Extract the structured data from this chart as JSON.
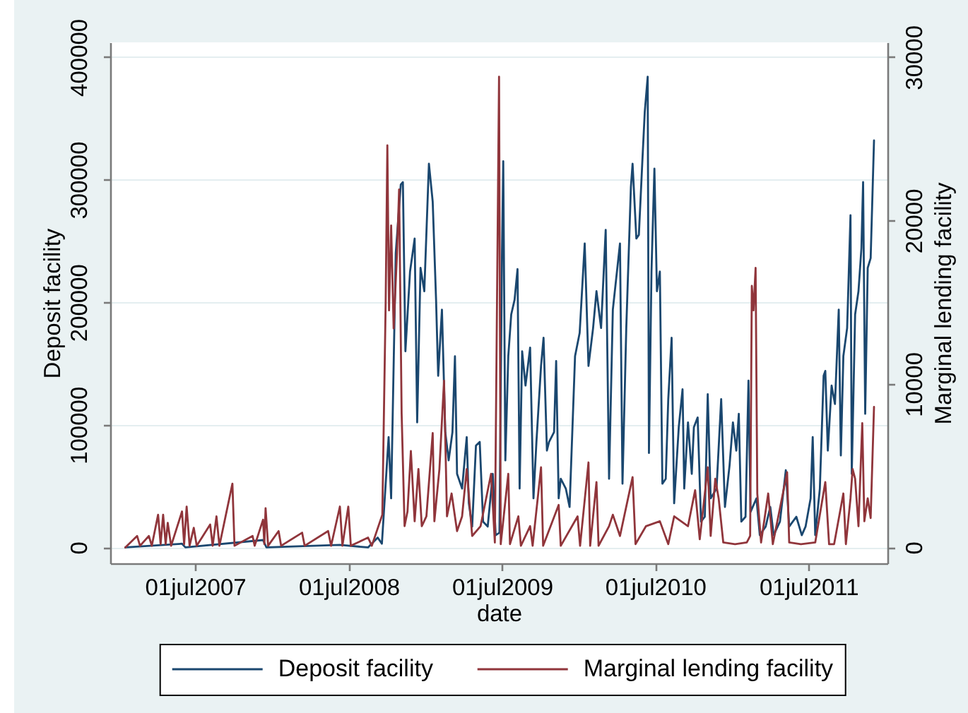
{
  "chart_data": {
    "type": "line",
    "xlabel": "date",
    "ylabel": "Deposit facility",
    "y2label": "Marginal lending facility",
    "xlim": [
      "2006-12-11",
      "2012-01-05"
    ],
    "xticks": [
      {
        "value": "2007-07-01",
        "label": "01jul2007"
      },
      {
        "value": "2008-07-01",
        "label": "01jul2008"
      },
      {
        "value": "2009-07-01",
        "label": "01jul2009"
      },
      {
        "value": "2010-07-01",
        "label": "01jul2010"
      },
      {
        "value": "2011-07-01",
        "label": "01jul2011"
      }
    ],
    "ylim": [
      -13000,
      412000
    ],
    "yticks": [
      0,
      100000,
      200000,
      300000,
      400000
    ],
    "y2lim": [
      -975,
      30900
    ],
    "y2ticks": [
      0,
      10000,
      20000,
      30000
    ],
    "grid": "y",
    "legend": "bottom",
    "series": [
      {
        "name": "Deposit facility",
        "color": "#1a476f",
        "x": [
          "2007-01-16",
          "2007-05-31",
          "2007-06-08",
          "2007-12-10",
          "2007-12-18",
          "2008-06-10",
          "2008-08-16",
          "2008-09-08",
          "2008-09-18",
          "2008-10-04",
          "2008-10-10",
          "2008-10-21",
          "2008-11-02",
          "2008-11-07",
          "2008-11-13",
          "2008-11-24",
          "2008-12-05",
          "2008-12-11",
          "2008-12-19",
          "2008-12-28",
          "2009-01-08",
          "2009-01-17",
          "2009-01-25",
          "2009-01-30",
          "2009-02-08",
          "2009-02-16",
          "2009-02-24",
          "2009-03-05",
          "2009-03-11",
          "2009-03-16",
          "2009-03-28",
          "2009-04-08",
          "2009-04-13",
          "2009-04-21",
          "2009-04-30",
          "2009-05-09",
          "2009-05-17",
          "2009-05-28",
          "2009-06-09",
          "2009-06-16",
          "2009-06-25",
          "2009-07-01",
          "2009-07-04",
          "2009-07-09",
          "2009-07-16",
          "2009-07-23",
          "2009-07-31",
          "2009-08-07",
          "2009-08-12",
          "2009-08-18",
          "2009-08-26",
          "2009-09-06",
          "2009-09-14",
          "2009-09-21",
          "2009-10-02",
          "2009-10-08",
          "2009-10-16",
          "2009-10-21",
          "2009-11-02",
          "2009-11-07",
          "2009-11-13",
          "2009-11-18",
          "2009-11-30",
          "2009-12-09",
          "2009-12-22",
          "2010-01-02",
          "2010-01-14",
          "2010-01-23",
          "2010-02-03",
          "2010-02-11",
          "2010-02-22",
          "2010-03-05",
          "2010-03-13",
          "2010-03-22",
          "2010-04-08",
          "2010-04-14",
          "2010-04-23",
          "2010-05-04",
          "2010-05-08",
          "2010-05-17",
          "2010-05-23",
          "2010-05-31",
          "2010-06-06",
          "2010-06-13",
          "2010-06-16",
          "2010-06-22",
          "2010-06-29",
          "2010-07-05",
          "2010-07-12",
          "2010-07-18",
          "2010-07-26",
          "2010-08-01",
          "2010-08-09",
          "2010-08-15",
          "2010-08-26",
          "2010-09-04",
          "2010-09-08",
          "2010-09-17",
          "2010-09-26",
          "2010-10-01",
          "2010-10-10",
          "2010-10-18",
          "2010-10-27",
          "2010-11-03",
          "2010-11-10",
          "2010-11-24",
          "2010-12-05",
          "2010-12-14",
          "2010-12-25",
          "2011-01-02",
          "2011-01-10",
          "2011-01-16",
          "2011-01-22",
          "2011-02-01",
          "2011-02-08",
          "2011-02-13",
          "2011-02-27",
          "2011-03-07",
          "2011-03-21",
          "2011-04-01",
          "2011-04-09",
          "2011-04-24",
          "2011-05-08",
          "2011-05-16",
          "2011-06-02",
          "2011-06-15",
          "2011-06-24",
          "2011-07-06",
          "2011-07-11",
          "2011-07-17",
          "2011-07-28",
          "2011-08-06",
          "2011-08-10",
          "2011-08-16",
          "2011-08-25",
          "2011-09-02",
          "2011-09-11",
          "2011-09-16",
          "2011-09-22",
          "2011-10-01",
          "2011-10-09",
          "2011-10-12",
          "2011-10-20",
          "2011-10-28",
          "2011-11-04",
          "2011-11-08",
          "2011-11-13",
          "2011-11-19",
          "2011-11-26",
          "2011-12-04"
        ],
        "values": [
          0,
          3000,
          0,
          6000,
          0,
          2000,
          0,
          8000,
          3000,
          90000,
          40000,
          240000,
          296000,
          298000,
          160000,
          225000,
          252000,
          102000,
          228000,
          209000,
          313000,
          282000,
          202000,
          140000,
          194000,
          94000,
          71000,
          94000,
          156000,
          60000,
          48000,
          90000,
          36000,
          17000,
          83000,
          86000,
          21000,
          17000,
          60000,
          10000,
          12000,
          240000,
          315000,
          71000,
          156000,
          190000,
          202000,
          227000,
          48000,
          160000,
          132000,
          163000,
          40000,
          86000,
          148000,
          171000,
          79000,
          86000,
          94000,
          152000,
          40000,
          56000,
          48000,
          33000,
          156000,
          175000,
          248000,
          148000,
          179000,
          209000,
          179000,
          259000,
          56000,
          194000,
          248000,
          52000,
          179000,
          294000,
          313000,
          252000,
          255000,
          313000,
          355000,
          384000,
          77000,
          225000,
          309000,
          209000,
          225000,
          52000,
          56000,
          121000,
          171000,
          36000,
          98000,
          129000,
          48000,
          102000,
          60000,
          98000,
          106000,
          21000,
          25000,
          125000,
          40000,
          48000,
          121000,
          33000,
          67000,
          102000,
          79000,
          109000,
          21000,
          25000,
          136000,
          29000,
          40000,
          10000,
          17000,
          33000,
          10000,
          21000,
          63000,
          17000,
          25000,
          10000,
          17000,
          40000,
          90000,
          10000,
          48000,
          140000,
          144000,
          79000,
          132000,
          117000,
          194000,
          75000,
          156000,
          179000,
          271000,
          60000,
          190000,
          209000,
          244000,
          298000,
          109000,
          228000,
          236000,
          332000
        ]
      },
      {
        "name": "Marginal lending facility",
        "color": "#90353b",
        "axis": "y2",
        "x": [
          "2007-01-16",
          "2007-02-13",
          "2007-02-20",
          "2007-03-13",
          "2007-03-20",
          "2007-04-04",
          "2007-04-10",
          "2007-04-16",
          "2007-04-22",
          "2007-04-27",
          "2007-05-05",
          "2007-05-31",
          "2007-06-05",
          "2007-06-11",
          "2007-06-18",
          "2007-06-28",
          "2007-07-05",
          "2007-08-06",
          "2007-08-12",
          "2007-08-21",
          "2007-08-28",
          "2007-09-28",
          "2007-10-03",
          "2007-11-15",
          "2007-11-20",
          "2007-12-10",
          "2007-12-13",
          "2007-12-16",
          "2007-12-22",
          "2008-01-16",
          "2008-01-22",
          "2008-03-12",
          "2008-03-18",
          "2008-05-13",
          "2008-05-20",
          "2008-06-10",
          "2008-06-16",
          "2008-06-30",
          "2008-07-06",
          "2008-08-16",
          "2008-08-25",
          "2008-09-19",
          "2008-09-27",
          "2008-10-01",
          "2008-10-05",
          "2008-10-10",
          "2008-10-16",
          "2008-10-24",
          "2008-10-29",
          "2008-11-04",
          "2008-11-11",
          "2008-11-18",
          "2008-11-26",
          "2008-12-05",
          "2008-12-14",
          "2008-12-22",
          "2009-01-02",
          "2009-01-17",
          "2009-01-21",
          "2009-02-02",
          "2009-02-13",
          "2009-02-20",
          "2009-03-03",
          "2009-03-16",
          "2009-03-28",
          "2009-04-08",
          "2009-04-21",
          "2009-05-11",
          "2009-06-05",
          "2009-06-14",
          "2009-06-24",
          "2009-06-28",
          "2009-07-16",
          "2009-07-20",
          "2009-08-09",
          "2009-08-15",
          "2009-09-06",
          "2009-09-12",
          "2009-10-02",
          "2009-10-07",
          "2009-11-13",
          "2009-11-18",
          "2009-12-28",
          "2010-01-03",
          "2010-01-23",
          "2010-01-27",
          "2010-02-11",
          "2010-02-16",
          "2010-03-13",
          "2010-03-22",
          "2010-04-08",
          "2010-05-08",
          "2010-05-15",
          "2010-06-09",
          "2010-07-12",
          "2010-08-01",
          "2010-08-15",
          "2010-09-17",
          "2010-10-04",
          "2010-10-15",
          "2010-11-03",
          "2010-11-10",
          "2010-11-21",
          "2010-11-29",
          "2010-12-10",
          "2011-01-07",
          "2011-02-04",
          "2011-02-12",
          "2011-02-16",
          "2011-02-20",
          "2011-02-25",
          "2011-03-01",
          "2011-03-10",
          "2011-03-27",
          "2011-04-07",
          "2011-05-11",
          "2011-05-16",
          "2011-06-13",
          "2011-07-17",
          "2011-08-10",
          "2011-08-19",
          "2011-08-31",
          "2011-09-22",
          "2011-09-28",
          "2011-10-09",
          "2011-10-14",
          "2011-10-20",
          "2011-10-28",
          "2011-11-06",
          "2011-11-11",
          "2011-11-19",
          "2011-11-26",
          "2011-12-04"
        ],
        "values": [
          0,
          700,
          100,
          700,
          100,
          2000,
          200,
          2000,
          200,
          1500,
          100,
          2200,
          200,
          2500,
          100,
          1200,
          100,
          1400,
          100,
          1900,
          100,
          3900,
          100,
          700,
          100,
          1700,
          200,
          2400,
          100,
          1000,
          100,
          900,
          100,
          1000,
          100,
          2500,
          100,
          2500,
          100,
          600,
          100,
          2000,
          15000,
          24600,
          14500,
          19700,
          13400,
          18000,
          21900,
          8200,
          1300,
          2200,
          5900,
          1600,
          4800,
          1300,
          1900,
          7000,
          1600,
          4800,
          10200,
          1900,
          3300,
          1000,
          1900,
          4800,
          700,
          1300,
          4500,
          300,
          28800,
          200,
          4500,
          200,
          1900,
          100,
          1300,
          100,
          4900,
          100,
          2600,
          100,
          1900,
          100,
          5200,
          100,
          4000,
          100,
          1300,
          2000,
          700,
          4300,
          200,
          1300,
          1600,
          200,
          1900,
          1300,
          3500,
          500,
          4900,
          700,
          4200,
          3000,
          300,
          200,
          300,
          700,
          16000,
          14500,
          17100,
          3300,
          300,
          3300,
          200,
          4600,
          300,
          200,
          300,
          4000,
          200,
          200,
          3300,
          200,
          3000,
          4800,
          4200,
          1300,
          7600,
          1600,
          3000,
          1800,
          8600
        ]
      }
    ]
  }
}
